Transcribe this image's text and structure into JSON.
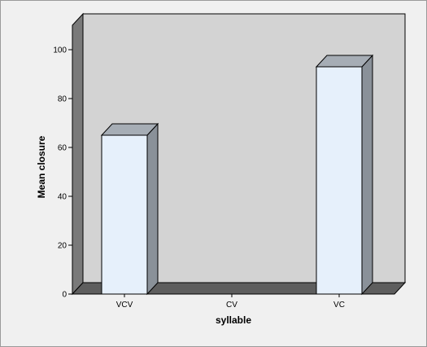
{
  "chart_data": {
    "type": "bar",
    "style": "3d",
    "categories": [
      "VCV",
      "CV",
      "VC"
    ],
    "values": [
      65,
      0,
      93
    ],
    "xlabel": "syllable",
    "ylabel": "Mean closure",
    "ylim": [
      0,
      110
    ],
    "yticks": [
      0,
      20,
      40,
      60,
      80,
      100
    ],
    "grid": false,
    "colors": {
      "bar_face": "#e6f0fb",
      "bar_side": "#8a9199",
      "bar_top": "#a6adb5",
      "back_wall": "#d3d3d3",
      "floor": "#5e5e5e",
      "left_wall": "#7a7a7a",
      "frame_bg": "#f0f0f0"
    }
  }
}
